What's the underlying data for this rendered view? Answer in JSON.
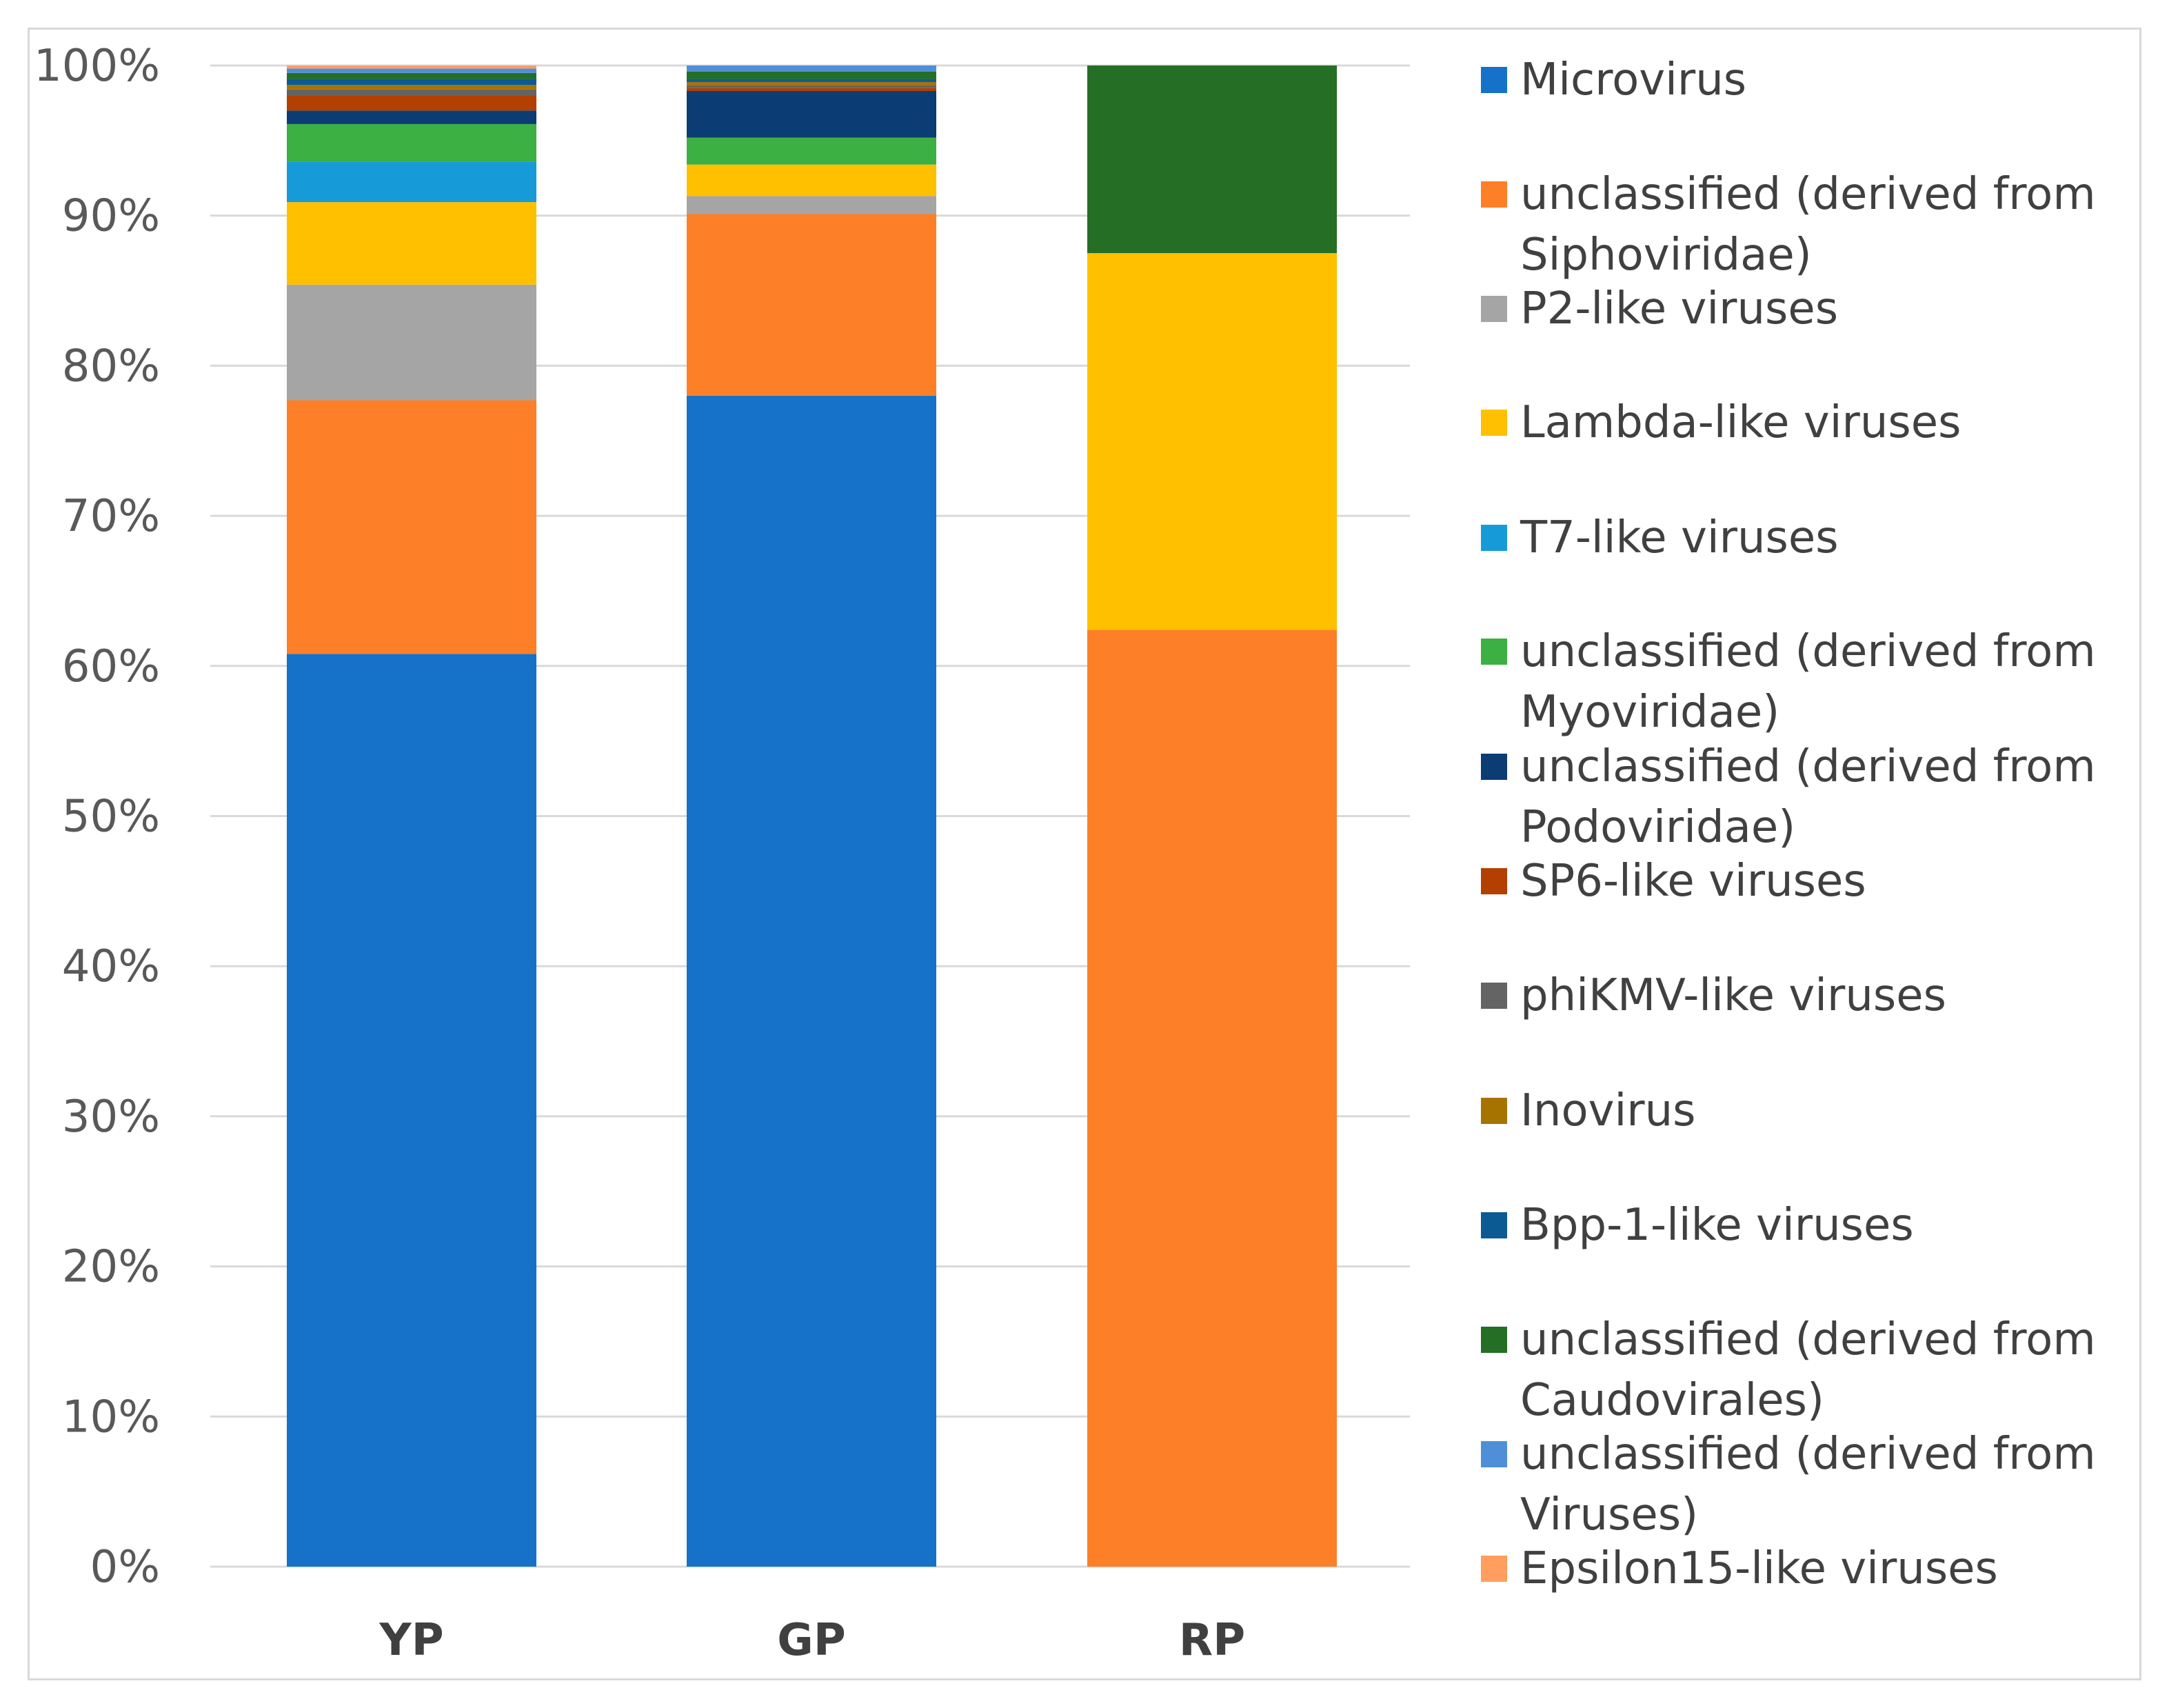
{
  "chart_data": {
    "type": "bar",
    "stacked": true,
    "categories": [
      "YP",
      "GP",
      "RP"
    ],
    "ylim": [
      0,
      100
    ],
    "y_ticks": [
      "0%",
      "10%",
      "20%",
      "30%",
      "40%",
      "50%",
      "60%",
      "70%",
      "80%",
      "90%",
      "100%"
    ],
    "grid": true,
    "legend_position": "right",
    "series": [
      {
        "name": "Microvirus",
        "color": "#1572C8",
        "values": [
          60.8,
          78.0,
          0
        ]
      },
      {
        "name": "unclassified (derived from Siphoviridae)",
        "color": "#FD7F27",
        "values": [
          16.9,
          12.1,
          62.4
        ]
      },
      {
        "name": "P2-like viruses",
        "color": "#A5A5A5",
        "values": [
          7.7,
          1.2,
          0
        ]
      },
      {
        "name": "Lambda-like viruses",
        "color": "#FFC000",
        "values": [
          5.5,
          2.1,
          25.1
        ]
      },
      {
        "name": "T7-like viruses",
        "color": "#179BD8",
        "values": [
          2.7,
          0,
          0
        ]
      },
      {
        "name": "unclassified (derived from Myoviridae)",
        "color": "#3CB043",
        "values": [
          2.5,
          1.8,
          0
        ]
      },
      {
        "name": "unclassified (derived from Podoviridae)",
        "color": "#0B3C74",
        "values": [
          0.9,
          3.1,
          0
        ]
      },
      {
        "name": "SP6-like viruses",
        "color": "#B33F00",
        "values": [
          1.0,
          0.2,
          0
        ]
      },
      {
        "name": "phiKMV-like viruses",
        "color": "#646464",
        "values": [
          0.4,
          0.2,
          0
        ]
      },
      {
        "name": "Inovirus",
        "color": "#A77300",
        "values": [
          0.3,
          0.2,
          0
        ]
      },
      {
        "name": "Bpp-1-like viruses",
        "color": "#0B5A94",
        "values": [
          0.4,
          0.2,
          0
        ]
      },
      {
        "name": "unclassified (derived from Caudovirales)",
        "color": "#246E26",
        "values": [
          0.4,
          0.5,
          12.5
        ]
      },
      {
        "name": "unclassified (derived from Viruses)",
        "color": "#4E8FD8",
        "values": [
          0.3,
          0.4,
          0
        ]
      },
      {
        "name": "Epsilon15-like viruses",
        "color": "#FF9E5E",
        "values": [
          0.2,
          0,
          0
        ]
      }
    ]
  }
}
